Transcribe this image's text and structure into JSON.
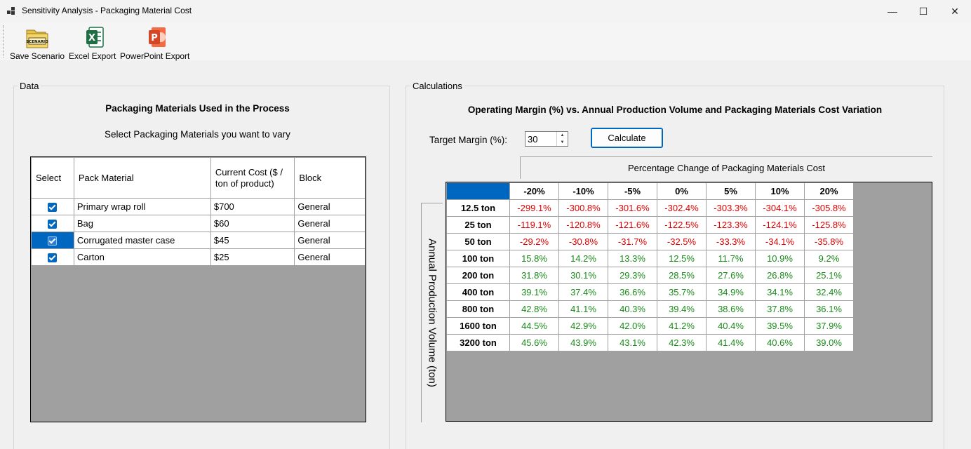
{
  "window": {
    "title": "Sensitivity Analysis - Packaging Material Cost",
    "controls": {
      "minimize": "—",
      "maximize": "☐",
      "close": "✕"
    }
  },
  "toolbar": {
    "save_label": "Save Scenario",
    "save_icon_text": "SCENARIO",
    "excel_label": "Excel Export",
    "excel_icon_text": "X",
    "ppt_label": "PowerPoint Export",
    "ppt_icon_text": "P"
  },
  "data_panel": {
    "group_label": "Data",
    "heading": "Packaging Materials Used in the Process",
    "subheading": "Select Packaging Materials you want to vary",
    "columns": [
      "Select",
      "Pack Material",
      "Current Cost ($ / ton of product)",
      "Block"
    ],
    "rows": [
      {
        "selected": true,
        "material": "Primary wrap roll",
        "cost": "$700",
        "block": "General"
      },
      {
        "selected": true,
        "material": "Bag",
        "cost": "$60",
        "block": "General"
      },
      {
        "selected": true,
        "material": "Corrugated master case",
        "cost": "$45",
        "block": "General"
      },
      {
        "selected": true,
        "material": "Carton",
        "cost": "$25",
        "block": "General"
      }
    ]
  },
  "calc_panel": {
    "group_label": "Calculations",
    "heading": "Operating Margin (%) vs. Annual Production Volume and Packaging Materials Cost Variation",
    "target_label": "Target Margin (%):",
    "target_value": "30",
    "calculate_label": "Calculate",
    "col_group_header": "Percentage Change of Packaging Materials Cost",
    "row_group_header": "Annual Production Volume (ton)",
    "colors": {
      "negative": "#e00000",
      "positive": "#1a8a1a",
      "accent": "#0067c0"
    },
    "columns": [
      "-20%",
      "-10%",
      "-5%",
      "0%",
      "5%",
      "10%",
      "20%"
    ],
    "rows": [
      {
        "label": "12.5 ton",
        "values": [
          "-299.1%",
          "-300.8%",
          "-301.6%",
          "-302.4%",
          "-303.3%",
          "-304.1%",
          "-305.8%"
        ]
      },
      {
        "label": "25 ton",
        "values": [
          "-119.1%",
          "-120.8%",
          "-121.6%",
          "-122.5%",
          "-123.3%",
          "-124.1%",
          "-125.8%"
        ]
      },
      {
        "label": "50 ton",
        "values": [
          "-29.2%",
          "-30.8%",
          "-31.7%",
          "-32.5%",
          "-33.3%",
          "-34.1%",
          "-35.8%"
        ]
      },
      {
        "label": "100 ton",
        "values": [
          "15.8%",
          "14.2%",
          "13.3%",
          "12.5%",
          "11.7%",
          "10.9%",
          "9.2%"
        ]
      },
      {
        "label": "200 ton",
        "values": [
          "31.8%",
          "30.1%",
          "29.3%",
          "28.5%",
          "27.6%",
          "26.8%",
          "25.1%"
        ]
      },
      {
        "label": "400 ton",
        "values": [
          "39.1%",
          "37.4%",
          "36.6%",
          "35.7%",
          "34.9%",
          "34.1%",
          "32.4%"
        ]
      },
      {
        "label": "800 ton",
        "values": [
          "42.8%",
          "41.1%",
          "40.3%",
          "39.4%",
          "38.6%",
          "37.8%",
          "36.1%"
        ]
      },
      {
        "label": "1600 ton",
        "values": [
          "44.5%",
          "42.9%",
          "42.0%",
          "41.2%",
          "40.4%",
          "39.5%",
          "37.9%"
        ]
      },
      {
        "label": "3200 ton",
        "values": [
          "45.6%",
          "43.9%",
          "43.1%",
          "42.3%",
          "41.4%",
          "40.6%",
          "39.0%"
        ]
      }
    ]
  }
}
